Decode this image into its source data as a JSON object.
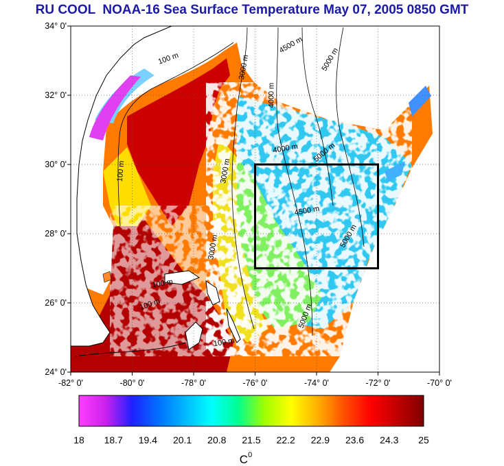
{
  "title": "RU COOL  NOAA-16 Sea Surface Temperature May 07, 2005 0850 GMT",
  "map": {
    "lat_ticks": [
      {
        "value": 34,
        "label": "34° 0'"
      },
      {
        "value": 32,
        "label": "32° 0'"
      },
      {
        "value": 30,
        "label": "30° 0'"
      },
      {
        "value": 28,
        "label": "28° 0'"
      },
      {
        "value": 26,
        "label": "26° 0'"
      },
      {
        "value": 24,
        "label": "24° 0'"
      }
    ],
    "lon_ticks": [
      {
        "value": -82,
        "label": "-82° 0'"
      },
      {
        "value": -80,
        "label": "-80° 0'"
      },
      {
        "value": -78,
        "label": "-78° 0'"
      },
      {
        "value": -76,
        "label": "-76° 0'"
      },
      {
        "value": -74,
        "label": "-74° 0'"
      },
      {
        "value": -72,
        "label": "-72° 0'"
      },
      {
        "value": -70,
        "label": "-70° 0'"
      }
    ],
    "extent": {
      "lon_min": -82,
      "lon_max": -70,
      "lat_min": 24,
      "lat_max": 34
    },
    "study_box": {
      "lon_min": -76,
      "lon_max": -72,
      "lat_min": 27,
      "lat_max": 30
    },
    "isobath_labels": [
      {
        "text": "100 m",
        "lon": -78.8,
        "lat": 33.0,
        "angle": -20
      },
      {
        "text": "3000 m",
        "lon": -76.3,
        "lat": 32.8,
        "angle": -80
      },
      {
        "text": "4500 m",
        "lon": -74.8,
        "lat": 33.4,
        "angle": -30
      },
      {
        "text": "5000 m",
        "lon": -73.5,
        "lat": 33.0,
        "angle": -60
      },
      {
        "text": "4000 m",
        "lon": -75.4,
        "lat": 32.0,
        "angle": -90
      },
      {
        "text": "100 m",
        "lon": -80.3,
        "lat": 29.8,
        "angle": -85
      },
      {
        "text": "3000 m",
        "lon": -76.9,
        "lat": 29.8,
        "angle": -80
      },
      {
        "text": "4000 m",
        "lon": -75.0,
        "lat": 30.4,
        "angle": -10
      },
      {
        "text": "5000 m",
        "lon": -73.7,
        "lat": 30.3,
        "angle": -40
      },
      {
        "text": "4500 m",
        "lon": -74.3,
        "lat": 28.6,
        "angle": -10
      },
      {
        "text": "5000 m",
        "lon": -72.9,
        "lat": 27.9,
        "angle": -60
      },
      {
        "text": "3000 m",
        "lon": -77.3,
        "lat": 27.6,
        "angle": -80
      },
      {
        "text": "100 m",
        "lon": -79.0,
        "lat": 26.5,
        "angle": -10
      },
      {
        "text": "100 m",
        "lon": -79.4,
        "lat": 25.9,
        "angle": -20
      },
      {
        "text": "5000 m",
        "lon": -74.3,
        "lat": 25.6,
        "angle": -70
      },
      {
        "text": "100 m",
        "lon": -77.0,
        "lat": 24.8,
        "angle": -10
      }
    ]
  },
  "colorbar": {
    "min": 18,
    "max": 25,
    "tick_labels": [
      "18",
      "18.7",
      "19.4",
      "20.1",
      "20.8",
      "21.5",
      "22.2",
      "22.9",
      "23.6",
      "24.3",
      "25"
    ],
    "unit_label": "C",
    "unit_superscript": "0",
    "colors": [
      "#ff40ff",
      "#cc20ee",
      "#2020ff",
      "#0070ff",
      "#00b8ff",
      "#00ffff",
      "#00ff90",
      "#a0ff00",
      "#ffff00",
      "#ffb000",
      "#ff5000",
      "#ff0000",
      "#c00000",
      "#800000"
    ]
  },
  "colors": {
    "land": "#ffffff",
    "coastline": "#000000",
    "box": "#000000",
    "title": "#1a1aa6"
  }
}
